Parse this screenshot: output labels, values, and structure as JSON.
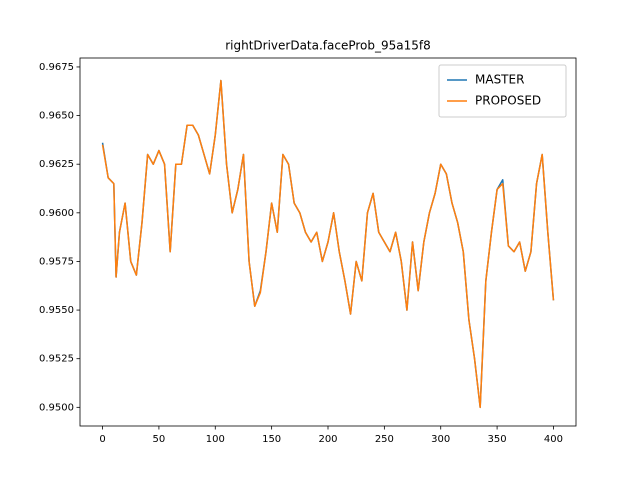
{
  "chart_data": {
    "type": "line",
    "title": "rightDriverData.faceProb_95a15f8",
    "x": [
      0,
      5,
      10,
      12,
      15,
      20,
      25,
      30,
      35,
      40,
      45,
      50,
      55,
      60,
      65,
      70,
      75,
      80,
      85,
      90,
      95,
      100,
      105,
      110,
      115,
      120,
      125,
      130,
      135,
      140,
      145,
      150,
      155,
      160,
      165,
      170,
      175,
      180,
      185,
      190,
      195,
      200,
      205,
      210,
      215,
      220,
      225,
      230,
      235,
      240,
      245,
      250,
      255,
      260,
      265,
      270,
      275,
      280,
      285,
      290,
      295,
      300,
      305,
      310,
      315,
      320,
      325,
      330,
      335,
      340,
      345,
      350,
      355,
      360,
      365,
      370,
      375,
      380,
      385,
      390,
      395,
      400
    ],
    "series": [
      {
        "name": "MASTER",
        "color": "#1f77b4",
        "values": [
          0.9636,
          0.9618,
          0.9615,
          0.9567,
          0.959,
          0.9605,
          0.9575,
          0.9568,
          0.9595,
          0.963,
          0.9625,
          0.9632,
          0.9625,
          0.958,
          0.9625,
          0.9625,
          0.9645,
          0.9645,
          0.964,
          0.963,
          0.962,
          0.964,
          0.9668,
          0.9625,
          0.96,
          0.9612,
          0.963,
          0.9575,
          0.9552,
          0.956,
          0.958,
          0.9605,
          0.959,
          0.963,
          0.9625,
          0.9605,
          0.96,
          0.959,
          0.9585,
          0.959,
          0.9575,
          0.9585,
          0.96,
          0.958,
          0.9565,
          0.9548,
          0.9575,
          0.9565,
          0.96,
          0.961,
          0.959,
          0.9585,
          0.958,
          0.959,
          0.9575,
          0.955,
          0.9585,
          0.956,
          0.9585,
          0.96,
          0.961,
          0.9625,
          0.962,
          0.9605,
          0.9595,
          0.958,
          0.9545,
          0.9525,
          0.95,
          0.9565,
          0.959,
          0.9612,
          0.9617,
          0.9583,
          0.958,
          0.9585,
          0.957,
          0.958,
          0.9615,
          0.963,
          0.959,
          0.9555
        ]
      },
      {
        "name": "PROPOSED",
        "color": "#ff7f0e",
        "values": [
          0.9635,
          0.9618,
          0.9615,
          0.9567,
          0.959,
          0.9605,
          0.9575,
          0.9568,
          0.9595,
          0.963,
          0.9625,
          0.9632,
          0.9625,
          0.958,
          0.9625,
          0.9625,
          0.9645,
          0.9645,
          0.964,
          0.963,
          0.962,
          0.964,
          0.9668,
          0.9625,
          0.96,
          0.9612,
          0.963,
          0.9575,
          0.9552,
          0.9559,
          0.958,
          0.9605,
          0.959,
          0.963,
          0.9625,
          0.9605,
          0.96,
          0.959,
          0.9585,
          0.959,
          0.9575,
          0.9585,
          0.96,
          0.958,
          0.9565,
          0.9548,
          0.9575,
          0.9565,
          0.96,
          0.961,
          0.959,
          0.9585,
          0.958,
          0.959,
          0.9575,
          0.955,
          0.9585,
          0.956,
          0.9585,
          0.96,
          0.961,
          0.9625,
          0.962,
          0.9605,
          0.9595,
          0.958,
          0.9545,
          0.9525,
          0.95,
          0.9565,
          0.959,
          0.9612,
          0.9615,
          0.9583,
          0.958,
          0.9585,
          0.957,
          0.958,
          0.9615,
          0.963,
          0.959,
          0.9555
        ]
      }
    ],
    "xlim": [
      -20,
      420
    ],
    "xticks": [
      0,
      50,
      100,
      150,
      200,
      250,
      300,
      350,
      400
    ],
    "ylim": [
      0.94904,
      0.96796
    ],
    "yticks": [
      {
        "value": 0.95,
        "label": "0.9500"
      },
      {
        "value": 0.9525,
        "label": "0.9525"
      },
      {
        "value": 0.955,
        "label": "0.9550"
      },
      {
        "value": 0.9575,
        "label": "0.9575"
      },
      {
        "value": 0.96,
        "label": "0.9600"
      },
      {
        "value": 0.9625,
        "label": "0.9625"
      },
      {
        "value": 0.965,
        "label": "0.9650"
      },
      {
        "value": 0.9675,
        "label": "0.9675"
      }
    ],
    "legend": "upper right",
    "grid": false
  }
}
